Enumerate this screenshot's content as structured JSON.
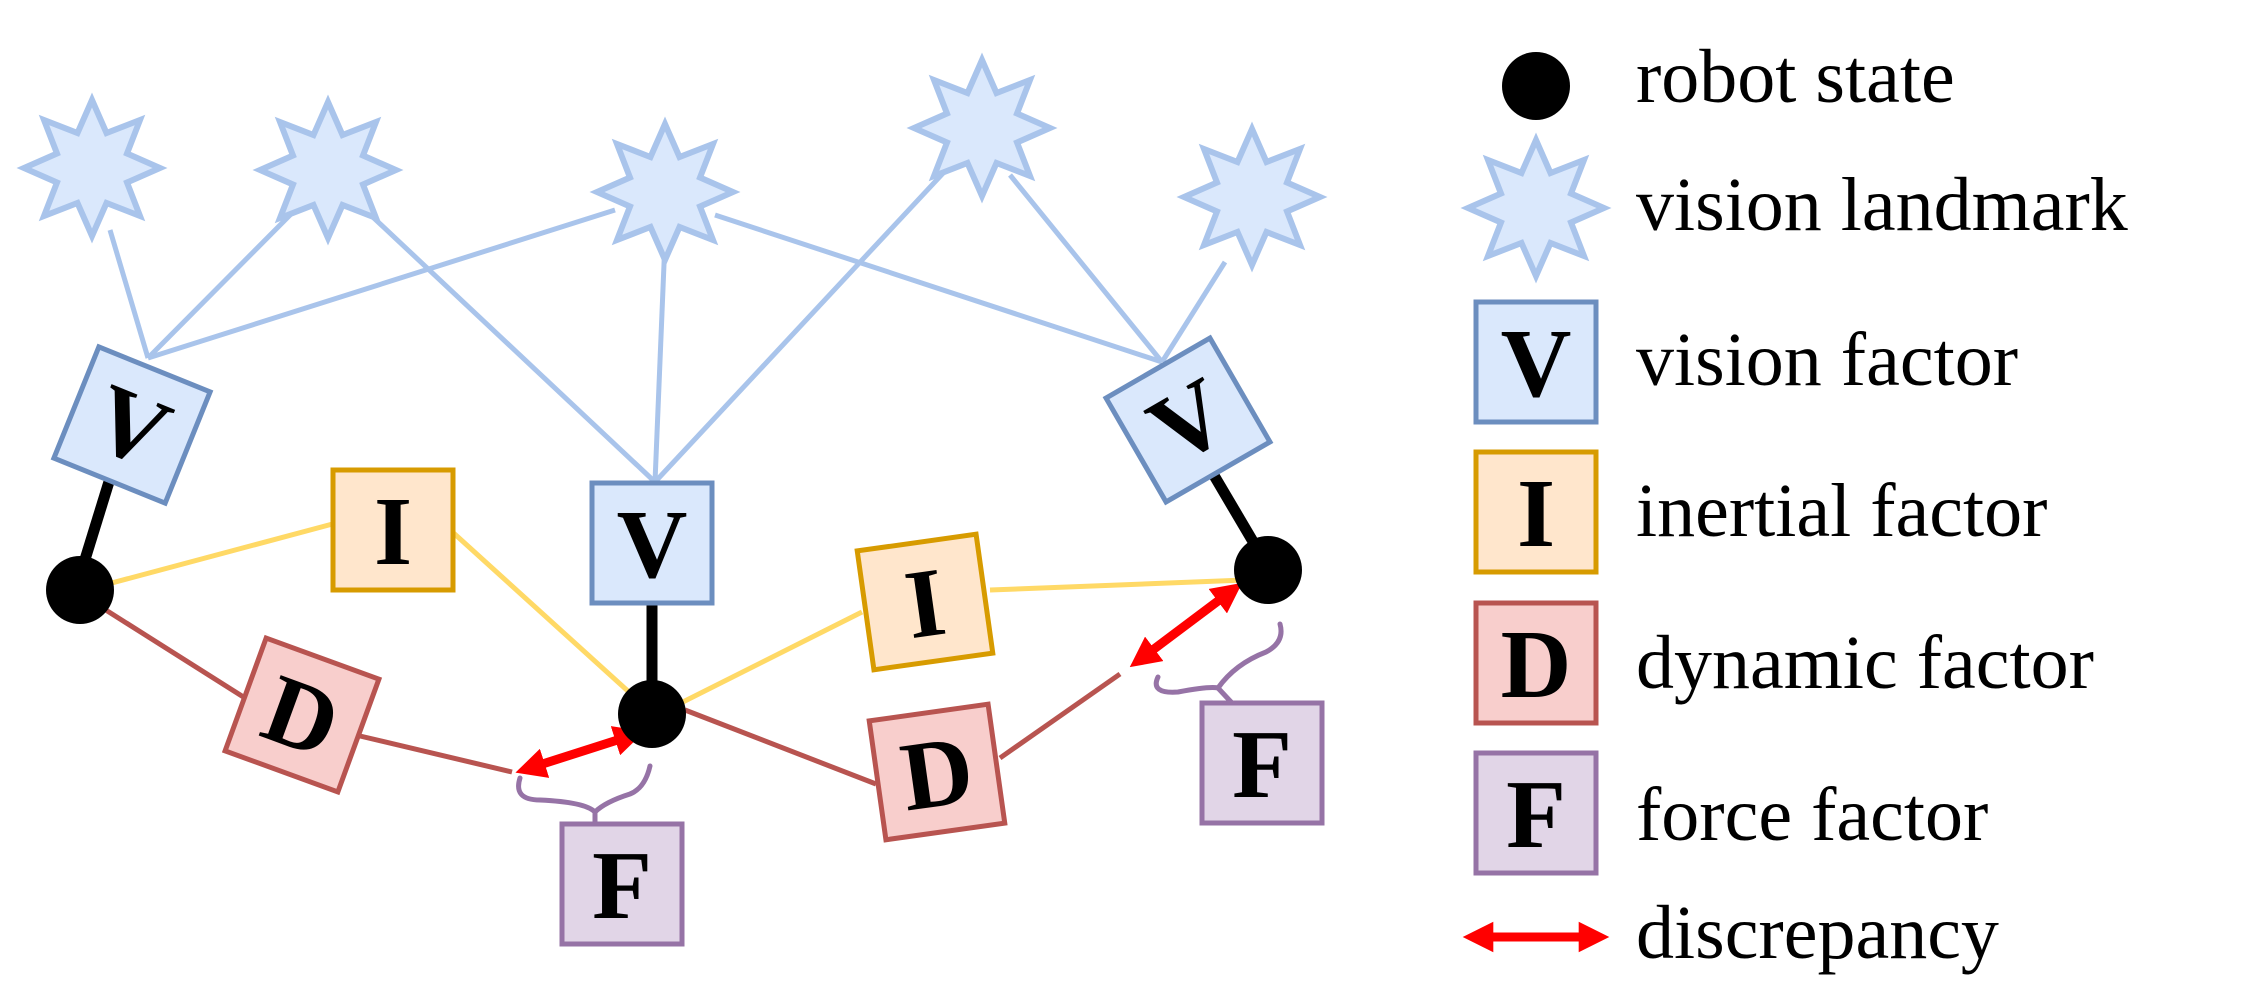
{
  "colors": {
    "robot_state": "#000000",
    "vision_fill": "#dae8fc",
    "vision_stroke": "#6c8ebf",
    "vision_edge": "#a9c4eb",
    "inertial_fill": "#ffe6cc",
    "inertial_stroke": "#d79b00",
    "inertial_edge": "#ffd966",
    "dynamic_fill": "#f8cecc",
    "dynamic_stroke": "#b85450",
    "force_fill": "#e1d5e7",
    "force_stroke": "#9673a6",
    "discrepancy": "#ff0000"
  },
  "diagram": {
    "factors": {
      "vision": "V",
      "inertial": "I",
      "dynamic": "D",
      "force": "F"
    }
  },
  "legend": {
    "items": [
      {
        "key": "robot_state",
        "icon": "robot-state-dot-icon",
        "label": "robot state"
      },
      {
        "key": "vision_landmark",
        "icon": "star-icon",
        "label": "vision landmark"
      },
      {
        "key": "vision_factor",
        "icon": "vision-factor-icon",
        "symbol": "V",
        "label": "vision factor"
      },
      {
        "key": "inertial_factor",
        "icon": "inertial-factor-icon",
        "symbol": "I",
        "label": "inertial factor"
      },
      {
        "key": "dynamic_factor",
        "icon": "dynamic-factor-icon",
        "symbol": "D",
        "label": "dynamic factor"
      },
      {
        "key": "force_factor",
        "icon": "force-factor-icon",
        "symbol": "F",
        "label": "force factor"
      },
      {
        "key": "discrepancy",
        "icon": "double-arrow-icon",
        "label": "discrepancy"
      }
    ]
  }
}
